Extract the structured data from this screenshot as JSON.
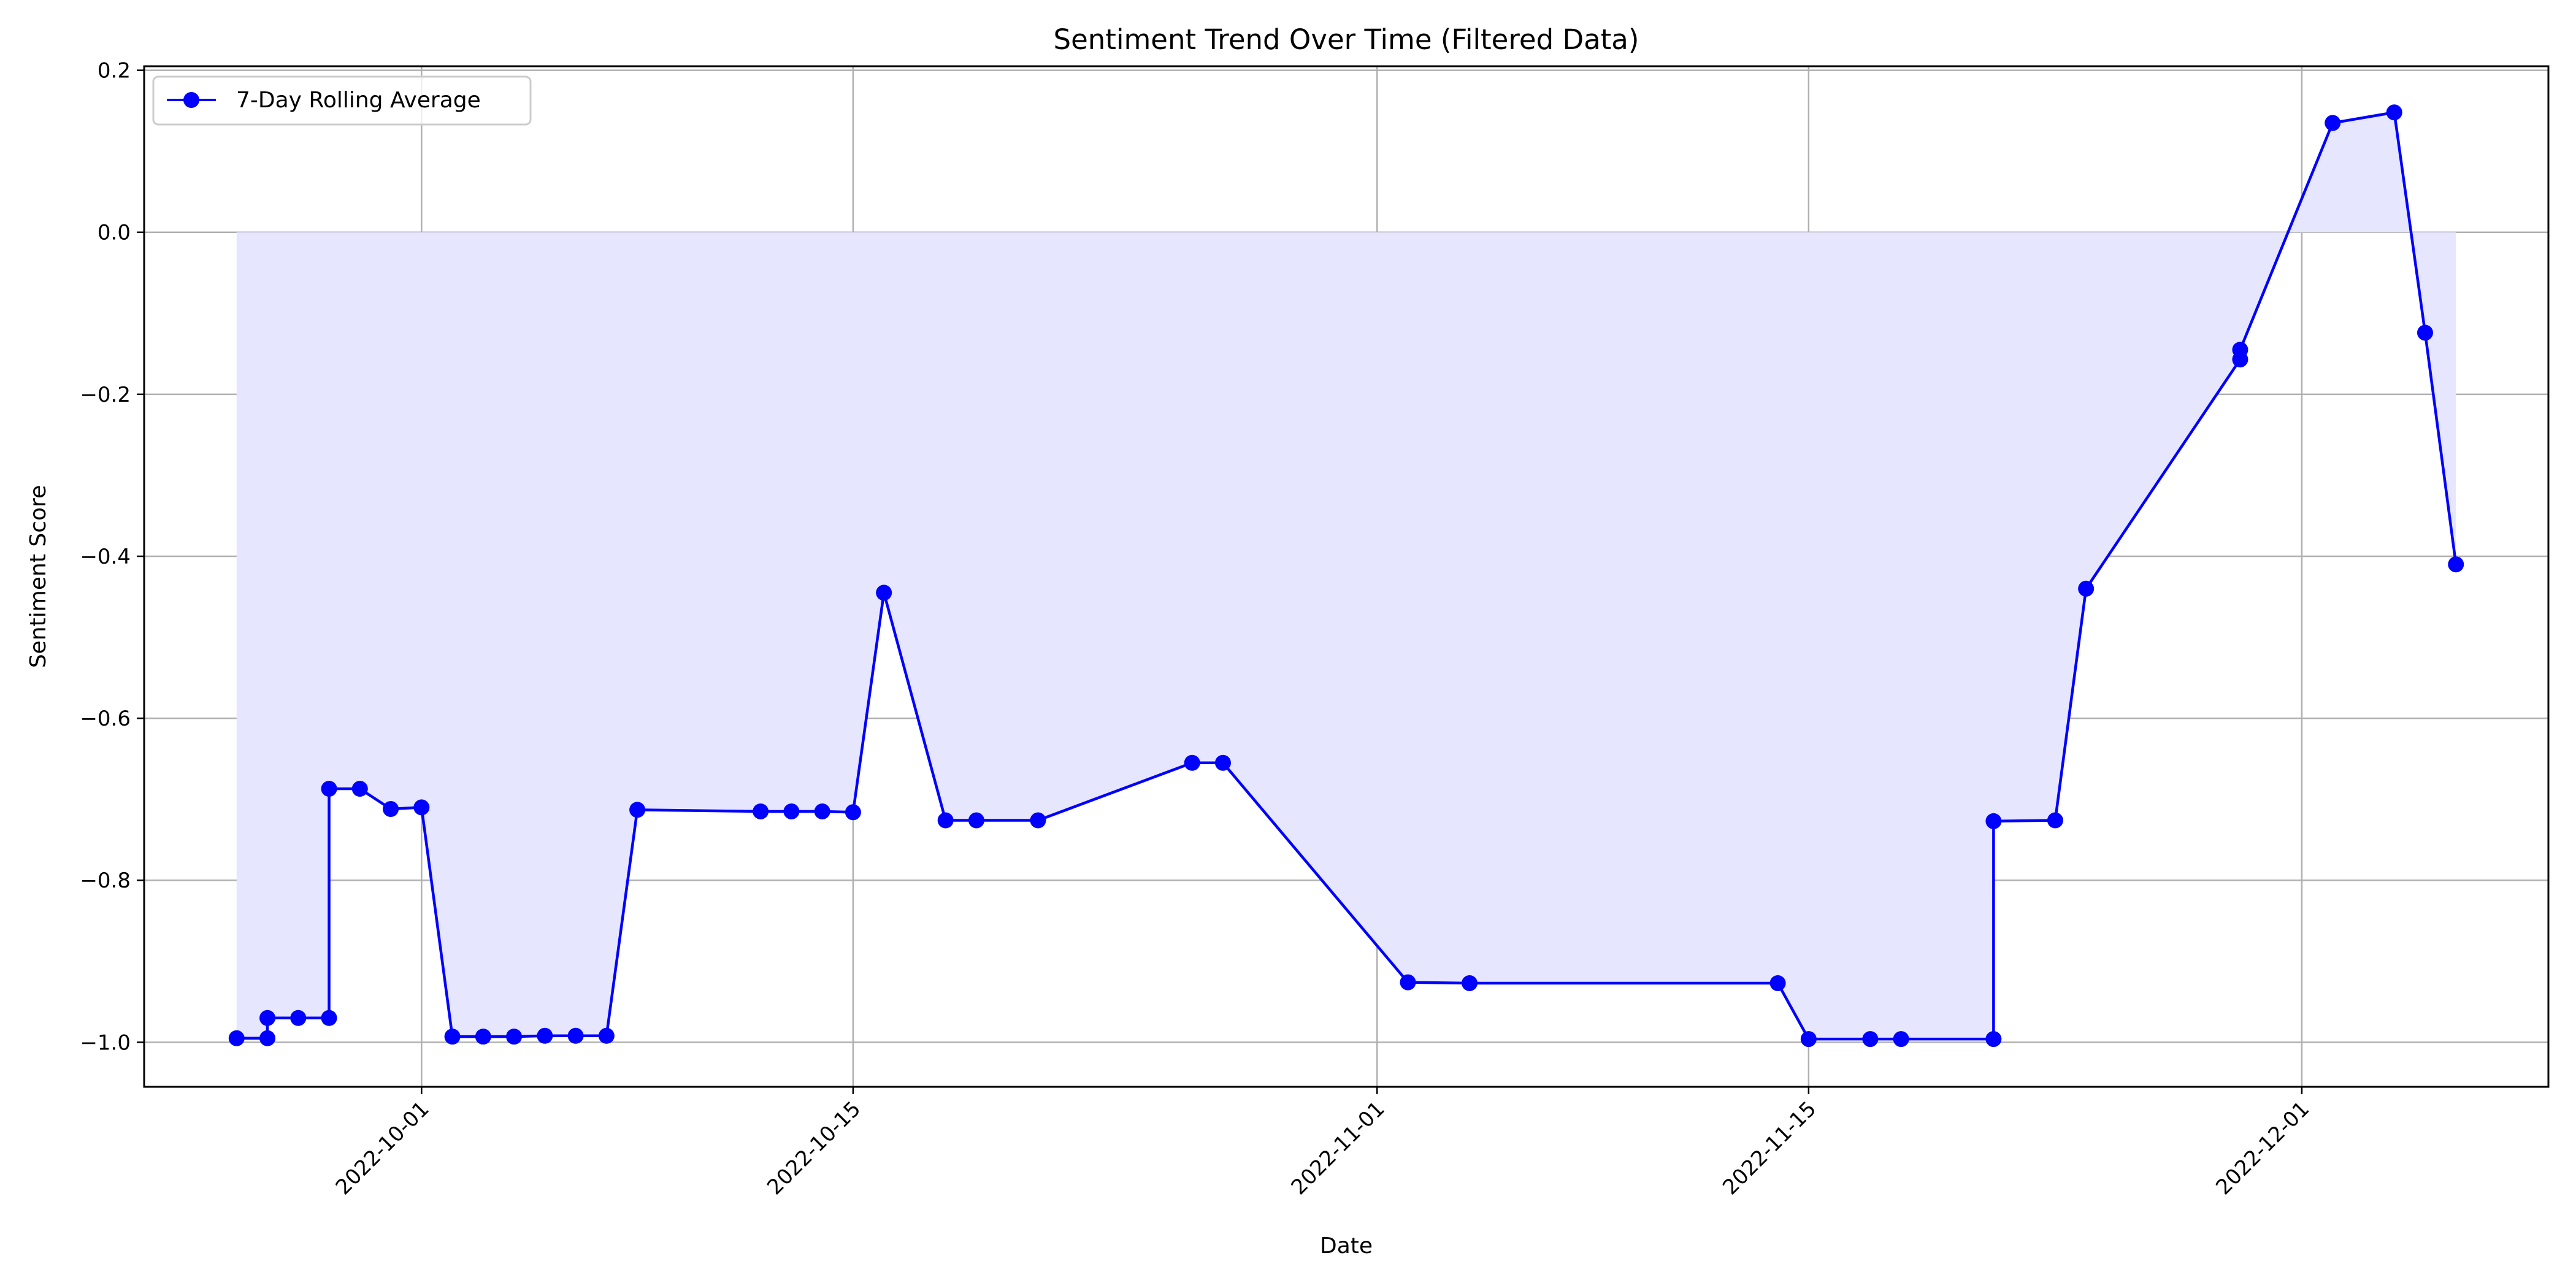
{
  "chart_data": {
    "type": "line",
    "title": "Sentiment Trend Over Time (Filtered Data)",
    "xlabel": "Date",
    "ylabel": "Sentiment Score",
    "xlim": [
      "2022-09-22",
      "2022-12-09"
    ],
    "ylim": [
      -1.055,
      0.205
    ],
    "x_ticks": [
      "2022-10-01",
      "2022-10-15",
      "2022-11-01",
      "2022-11-15",
      "2022-12-01"
    ],
    "y_ticks": [
      0.2,
      0.0,
      -0.2,
      -0.4,
      -0.6,
      -0.8,
      -1.0
    ],
    "y_tick_labels": [
      "0.2",
      "0.0",
      "−0.2",
      "−0.4",
      "−0.6",
      "−0.8",
      "−1.0"
    ],
    "grid": true,
    "legend_position": "upper-left",
    "fill_to_zero": true,
    "colors": {
      "line": "#0000ff",
      "marker": "#0000ff",
      "fill": "#e6e6ff",
      "grid": "#b0b0b0"
    },
    "series": [
      {
        "name": "7-Day Rolling Average",
        "points": [
          {
            "x": "2022-09-25",
            "y": -0.995
          },
          {
            "x": "2022-09-26",
            "y": -0.995
          },
          {
            "x": "2022-09-26",
            "y": -0.97
          },
          {
            "x": "2022-09-27",
            "y": -0.97
          },
          {
            "x": "2022-09-28",
            "y": -0.97
          },
          {
            "x": "2022-09-28",
            "y": -0.687
          },
          {
            "x": "2022-09-29",
            "y": -0.687
          },
          {
            "x": "2022-09-30",
            "y": -0.712
          },
          {
            "x": "2022-10-01",
            "y": -0.71
          },
          {
            "x": "2022-10-02",
            "y": -0.993
          },
          {
            "x": "2022-10-03",
            "y": -0.993
          },
          {
            "x": "2022-10-04",
            "y": -0.993
          },
          {
            "x": "2022-10-05",
            "y": -0.992
          },
          {
            "x": "2022-10-06",
            "y": -0.992
          },
          {
            "x": "2022-10-07",
            "y": -0.992
          },
          {
            "x": "2022-10-08",
            "y": -0.713
          },
          {
            "x": "2022-10-12",
            "y": -0.715
          },
          {
            "x": "2022-10-13",
            "y": -0.715
          },
          {
            "x": "2022-10-14",
            "y": -0.715
          },
          {
            "x": "2022-10-15",
            "y": -0.716
          },
          {
            "x": "2022-10-16",
            "y": -0.445
          },
          {
            "x": "2022-10-18",
            "y": -0.726
          },
          {
            "x": "2022-10-19",
            "y": -0.726
          },
          {
            "x": "2022-10-21",
            "y": -0.726
          },
          {
            "x": "2022-10-26",
            "y": -0.655
          },
          {
            "x": "2022-10-27",
            "y": -0.655
          },
          {
            "x": "2022-11-02",
            "y": -0.926
          },
          {
            "x": "2022-11-04",
            "y": -0.927
          },
          {
            "x": "2022-11-14",
            "y": -0.927
          },
          {
            "x": "2022-11-15",
            "y": -0.996
          },
          {
            "x": "2022-11-17",
            "y": -0.996
          },
          {
            "x": "2022-11-18",
            "y": -0.996
          },
          {
            "x": "2022-11-21",
            "y": -0.996
          },
          {
            "x": "2022-11-21",
            "y": -0.727
          },
          {
            "x": "2022-11-23",
            "y": -0.726
          },
          {
            "x": "2022-11-24",
            "y": -0.44
          },
          {
            "x": "2022-11-29",
            "y": -0.157
          },
          {
            "x": "2022-11-29",
            "y": -0.145
          },
          {
            "x": "2022-12-02",
            "y": 0.135
          },
          {
            "x": "2022-12-04",
            "y": 0.148
          },
          {
            "x": "2022-12-05",
            "y": -0.124
          },
          {
            "x": "2022-12-06",
            "y": -0.41
          }
        ]
      }
    ]
  }
}
